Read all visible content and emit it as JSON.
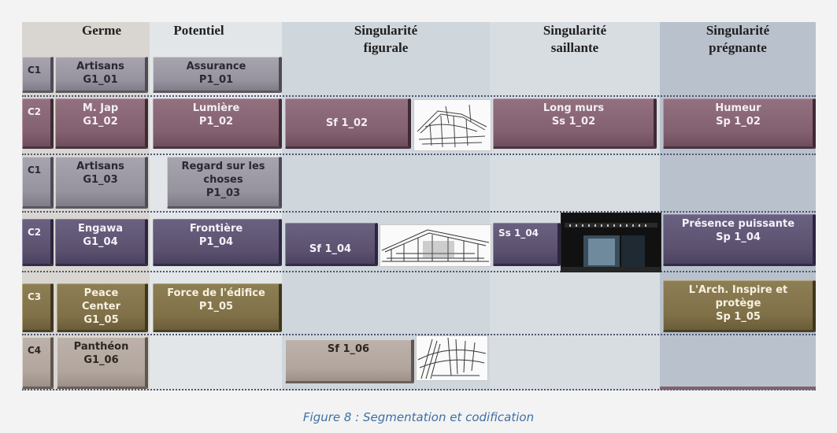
{
  "headers": {
    "germe": "Germe",
    "potentiel": "Potentiel",
    "sing_figurale": "Singularité\nfigurale",
    "sing_saillante": "Singularité\nsaillante",
    "sing_pregnante": "Singularité\nprégnante"
  },
  "rows": [
    {
      "code": "C1",
      "germe": "Artisans\nG1_01",
      "potentiel": "Assurance\nP1_01",
      "figurale": "",
      "saillante": "",
      "pregnante": ""
    },
    {
      "code": "C2",
      "germe": "M. Jap\nG1_02",
      "potentiel": "Lumière\nP1_02",
      "figurale": "Sf 1_02",
      "saillante": "Long murs\nSs 1_02",
      "pregnante": "Humeur\nSp 1_02"
    },
    {
      "code": "C1",
      "germe": "Artisans\nG1_03",
      "potentiel": "Regard sur les\nchoses\nP1_03",
      "figurale": "",
      "saillante": "",
      "pregnante": ""
    },
    {
      "code": "C2",
      "germe": "Engawa\nG1_04",
      "potentiel": "Frontière\nP1_04",
      "figurale": "Sf 1_04",
      "saillante": "Ss 1_04",
      "pregnante": "Présence puissante\nSp 1_04"
    },
    {
      "code": "C3",
      "germe": "Peace\nCenter\nG1_05",
      "potentiel": "Force de l'édifice\nP1_05",
      "figurale": "",
      "saillante": "",
      "pregnante": "L'Arch. Inspire et\nprotège\nSp 1_05"
    },
    {
      "code": "C4",
      "germe": "Panthéon\nG1_06",
      "potentiel": "",
      "figurale": "Sf 1_06",
      "saillante": "",
      "pregnante": ""
    }
  ],
  "caption": "Figure 8 : Segmentation et codification",
  "colors": {
    "gray": "#96939e",
    "purple": "#83606f",
    "dark_purple": "#5b516f",
    "olive": "#7f7048",
    "beige": "#b1a59d",
    "caption": "#3f6fa3"
  }
}
